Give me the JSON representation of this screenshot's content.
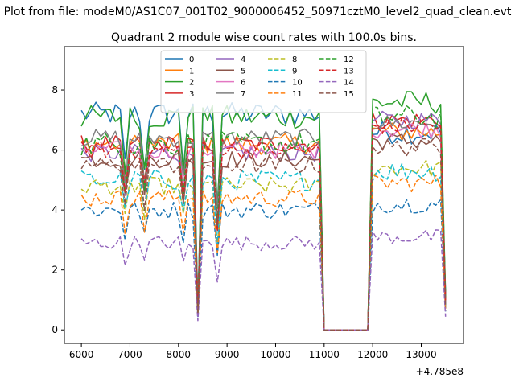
{
  "figure": {
    "suptitle": "Plot from file: modeM0/AS1C07_001T02_9000006452_50971cztM0_level2_quad_clean.evt"
  },
  "chart_data": {
    "type": "line",
    "title": "Quadrant 2 module wise count rates with 100.0s bins.",
    "xlabel": "",
    "ylabel": "",
    "x_offset_label": "+4.785e8",
    "xlim": [
      5650,
      13870
    ],
    "ylim": [
      -0.45,
      9.45
    ],
    "x_ticks": [
      6000,
      7000,
      8000,
      9000,
      10000,
      11000,
      12000,
      13000
    ],
    "x_tick_labels": [
      "6000",
      "7000",
      "8000",
      "9000",
      "10000",
      "11000",
      "12000",
      "13000"
    ],
    "y_ticks": [
      0,
      2,
      4,
      6,
      8
    ],
    "y_tick_labels": [
      "0",
      "2",
      "4",
      "6",
      "8"
    ],
    "grid": false,
    "legend": {
      "placement": "top-center",
      "columns": 4
    },
    "x_segments": [
      {
        "start": 6000,
        "end": 10900
      },
      {
        "start": 12000,
        "end": 13500
      }
    ],
    "x_step": 100,
    "gap_x": [
      11000,
      11900
    ],
    "gap_value": 0,
    "dip_x": [
      8400,
      8800,
      13500
    ],
    "dip_values": [
      0.7,
      3.9,
      1.0
    ],
    "series": [
      {
        "name": "0",
        "color": "#1f77b4",
        "dash": "solid",
        "level_a": 7.2,
        "level_b": 6.6,
        "noise": 0.4
      },
      {
        "name": "1",
        "color": "#ff7f0e",
        "dash": "solid",
        "level_a": 6.2,
        "level_b": 6.6,
        "noise": 0.35
      },
      {
        "name": "2",
        "color": "#2ca02c",
        "dash": "solid",
        "level_a": 7.1,
        "level_b": 7.6,
        "noise": 0.4
      },
      {
        "name": "3",
        "color": "#d62728",
        "dash": "solid",
        "level_a": 6.2,
        "level_b": 7.0,
        "noise": 0.3
      },
      {
        "name": "4",
        "color": "#9467bd",
        "dash": "solid",
        "level_a": 5.9,
        "level_b": 7.0,
        "noise": 0.3
      },
      {
        "name": "5",
        "color": "#8c564b",
        "dash": "solid",
        "level_a": 5.7,
        "level_b": 6.3,
        "noise": 0.3
      },
      {
        "name": "6",
        "color": "#e377c2",
        "dash": "solid",
        "level_a": 6.0,
        "level_b": 6.7,
        "noise": 0.3
      },
      {
        "name": "7",
        "color": "#7f7f7f",
        "dash": "solid",
        "level_a": 6.4,
        "level_b": 6.9,
        "noise": 0.3
      },
      {
        "name": "8",
        "color": "#bcbd22",
        "dash": "dashed",
        "level_a": 4.8,
        "level_b": 5.4,
        "noise": 0.3
      },
      {
        "name": "9",
        "color": "#17becf",
        "dash": "dashed",
        "level_a": 5.0,
        "level_b": 5.3,
        "noise": 0.35
      },
      {
        "name": "10",
        "color": "#1f77b4",
        "dash": "dashed",
        "level_a": 4.0,
        "level_b": 4.2,
        "noise": 0.3
      },
      {
        "name": "11",
        "color": "#ff7f0e",
        "dash": "dashed",
        "level_a": 4.4,
        "level_b": 4.9,
        "noise": 0.3
      },
      {
        "name": "12",
        "color": "#2ca02c",
        "dash": "dashed",
        "level_a": 6.2,
        "level_b": 7.1,
        "noise": 0.4
      },
      {
        "name": "13",
        "color": "#d62728",
        "dash": "dashed",
        "level_a": 6.0,
        "level_b": 6.8,
        "noise": 0.3
      },
      {
        "name": "14",
        "color": "#9467bd",
        "dash": "dashed",
        "level_a": 2.9,
        "level_b": 3.1,
        "noise": 0.25
      },
      {
        "name": "15",
        "color": "#8c564b",
        "dash": "dashed",
        "level_a": 5.5,
        "level_b": 6.1,
        "noise": 0.3
      }
    ]
  }
}
